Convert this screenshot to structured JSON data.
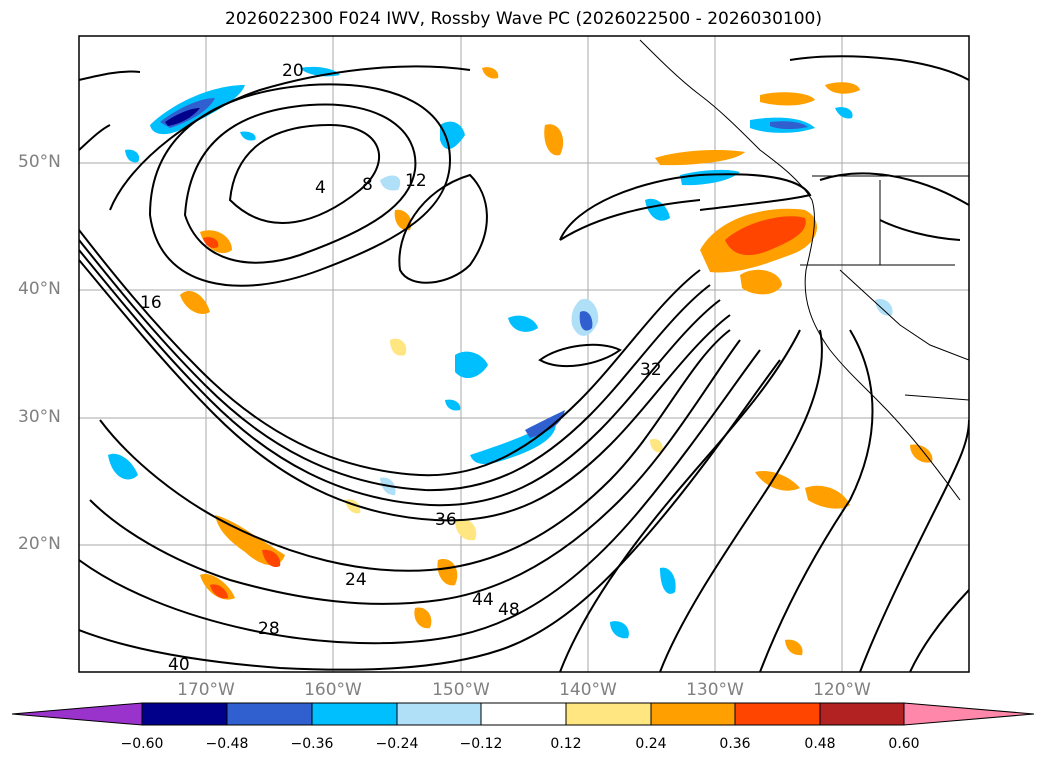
{
  "title": "2026022300 F024 IWV, Rossby Wave PC (2026022500 - 2026030100)",
  "lat_labels": [
    "50°N",
    "40°N",
    "30°N",
    "20°N"
  ],
  "lon_labels": [
    "170°W",
    "160°W",
    "150°W",
    "140°W",
    "130°W",
    "120°W"
  ],
  "contour_labels": [
    "4",
    "8",
    "12",
    "16",
    "20",
    "24",
    "28",
    "32",
    "36",
    "40",
    "44",
    "48"
  ],
  "colorbar": {
    "ticks": [
      "−0.60",
      "−0.48",
      "−0.36",
      "−0.24",
      "−0.12",
      "0.12",
      "0.24",
      "0.36",
      "0.48",
      "0.60"
    ],
    "colors": [
      "#9933cc",
      "#00008b",
      "#3060d0",
      "#00bfff",
      "#b0e0f8",
      "#ffffff",
      "#ffe680",
      "#ffa000",
      "#ff4500",
      "#b22222",
      "#ff88aa"
    ]
  }
}
